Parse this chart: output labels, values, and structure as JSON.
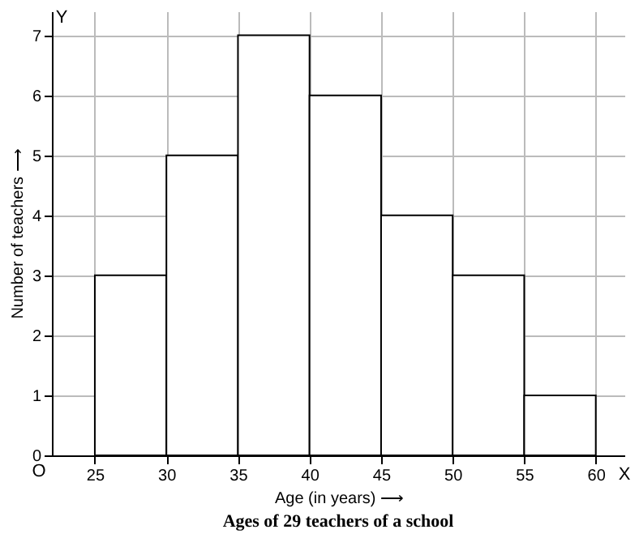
{
  "chart_data": {
    "type": "histogram",
    "title": "Ages of 29 teachers of a school",
    "xlabel": "Age (in years) ⟶",
    "ylabel": "Number of teachers ⟶",
    "bins": [
      25,
      30,
      35,
      40,
      45,
      50,
      55,
      60
    ],
    "values": [
      3,
      5,
      7,
      6,
      4,
      3,
      1
    ],
    "color": "#ffffff",
    "xlim": [
      22,
      62
    ],
    "xticks": [
      25,
      30,
      35,
      40,
      45,
      50,
      55,
      60
    ],
    "ylim": [
      0,
      7.4
    ],
    "yticks": [
      0,
      1,
      2,
      3,
      4,
      5,
      6,
      7
    ],
    "grid": true,
    "annotations": [
      "O",
      "X",
      "Y"
    ]
  }
}
